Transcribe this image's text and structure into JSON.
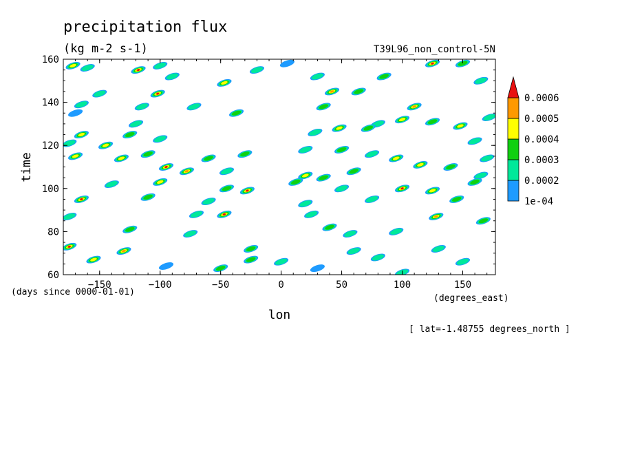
{
  "chart_data": {
    "type": "heatmap",
    "title": "precipitation flux",
    "subtitle": "(kg m-2 s-1)",
    "experiment": "T39L96_non_control-5N",
    "xlabel": "lon",
    "xunits": "(degrees_east)",
    "ylabel": "time",
    "yunits": "(days since 0000-01-01)",
    "slice_note": "[ lat=-1.48755 degrees_north ]",
    "xlim": [
      -180,
      177
    ],
    "ylim": [
      60,
      160
    ],
    "xticks": [
      -150,
      -100,
      -50,
      0,
      50,
      100,
      150
    ],
    "yticks": [
      60,
      80,
      100,
      120,
      140,
      160
    ],
    "legend": {
      "placement": "right",
      "levels": [
        0.0001,
        0.0002,
        0.0003,
        0.0004,
        0.0005,
        0.0006
      ],
      "level_labels": [
        "1e-04",
        "0.0002",
        "0.0003",
        "0.0004",
        "0.0005",
        "0.0006"
      ],
      "colors": [
        "#1e9bff",
        "#00e89a",
        "#10d010",
        "#ffff00",
        "#ff9900",
        "#e81010"
      ],
      "extend": "max"
    },
    "blobs": [
      {
        "lon": -172,
        "time": 157,
        "v": 0.00045
      },
      {
        "lon": -160,
        "time": 156,
        "v": 0.00025
      },
      {
        "lon": -118,
        "time": 155,
        "v": 0.00062
      },
      {
        "lon": -100,
        "time": 157,
        "v": 0.00025
      },
      {
        "lon": -90,
        "time": 152,
        "v": 0.00022
      },
      {
        "lon": -47,
        "time": 149,
        "v": 0.00045
      },
      {
        "lon": -20,
        "time": 155,
        "v": 0.00022
      },
      {
        "lon": 5,
        "time": 158,
        "v": 0.00018
      },
      {
        "lon": 30,
        "time": 152,
        "v": 0.00028
      },
      {
        "lon": 42,
        "time": 145,
        "v": 0.00055
      },
      {
        "lon": 64,
        "time": 145,
        "v": 0.00032
      },
      {
        "lon": 85,
        "time": 152,
        "v": 0.0003
      },
      {
        "lon": 125,
        "time": 158,
        "v": 0.00065
      },
      {
        "lon": 150,
        "time": 158,
        "v": 0.0003
      },
      {
        "lon": 165,
        "time": 150,
        "v": 0.00025
      },
      {
        "lon": -102,
        "time": 144,
        "v": 0.00065
      },
      {
        "lon": -150,
        "time": 144,
        "v": 0.00022
      },
      {
        "lon": -165,
        "time": 139,
        "v": 0.00025
      },
      {
        "lon": -115,
        "time": 138,
        "v": 0.00028
      },
      {
        "lon": -72,
        "time": 138,
        "v": 0.0002
      },
      {
        "lon": -37,
        "time": 135,
        "v": 0.0003
      },
      {
        "lon": 35,
        "time": 138,
        "v": 0.00035
      },
      {
        "lon": 110,
        "time": 138,
        "v": 0.00055
      },
      {
        "lon": 100,
        "time": 132,
        "v": 0.00045
      },
      {
        "lon": 80,
        "time": 130,
        "v": 0.00028
      },
      {
        "lon": 125,
        "time": 131,
        "v": 0.00035
      },
      {
        "lon": 172,
        "time": 133,
        "v": 0.00022
      },
      {
        "lon": 148,
        "time": 129,
        "v": 0.00042
      },
      {
        "lon": -170,
        "time": 135,
        "v": 0.00018
      },
      {
        "lon": -120,
        "time": 130,
        "v": 0.00022
      },
      {
        "lon": -165,
        "time": 125,
        "v": 0.00045
      },
      {
        "lon": -125,
        "time": 125,
        "v": 0.00038
      },
      {
        "lon": -145,
        "time": 120,
        "v": 0.00042
      },
      {
        "lon": -175,
        "time": 121,
        "v": 0.0002
      },
      {
        "lon": -100,
        "time": 123,
        "v": 0.00022
      },
      {
        "lon": 28,
        "time": 126,
        "v": 0.00025
      },
      {
        "lon": 48,
        "time": 128,
        "v": 0.00045
      },
      {
        "lon": 72,
        "time": 128,
        "v": 0.0003
      },
      {
        "lon": 160,
        "time": 122,
        "v": 0.0002
      },
      {
        "lon": -170,
        "time": 115,
        "v": 0.00045
      },
      {
        "lon": -132,
        "time": 114,
        "v": 0.00045
      },
      {
        "lon": -110,
        "time": 116,
        "v": 0.00035
      },
      {
        "lon": -95,
        "time": 110,
        "v": 0.00062
      },
      {
        "lon": -60,
        "time": 114,
        "v": 0.0003
      },
      {
        "lon": -30,
        "time": 116,
        "v": 0.0003
      },
      {
        "lon": 20,
        "time": 118,
        "v": 0.00022
      },
      {
        "lon": 50,
        "time": 118,
        "v": 0.0003
      },
      {
        "lon": 75,
        "time": 116,
        "v": 0.00025
      },
      {
        "lon": 95,
        "time": 114,
        "v": 0.00045
      },
      {
        "lon": 115,
        "time": 111,
        "v": 0.00045
      },
      {
        "lon": 140,
        "time": 110,
        "v": 0.00038
      },
      {
        "lon": 170,
        "time": 114,
        "v": 0.00025
      },
      {
        "lon": -78,
        "time": 108,
        "v": 0.00055
      },
      {
        "lon": -45,
        "time": 108,
        "v": 0.00028
      },
      {
        "lon": 20,
        "time": 106,
        "v": 0.00045
      },
      {
        "lon": 35,
        "time": 105,
        "v": 0.00035
      },
      {
        "lon": 60,
        "time": 108,
        "v": 0.0003
      },
      {
        "lon": 165,
        "time": 106,
        "v": 0.00022
      },
      {
        "lon": -100,
        "time": 103,
        "v": 0.00045
      },
      {
        "lon": -140,
        "time": 102,
        "v": 0.00025
      },
      {
        "lon": -28,
        "time": 99,
        "v": 0.00062
      },
      {
        "lon": -45,
        "time": 100,
        "v": 0.00035
      },
      {
        "lon": 12,
        "time": 103,
        "v": 0.00035
      },
      {
        "lon": 50,
        "time": 100,
        "v": 0.00025
      },
      {
        "lon": 100,
        "time": 100,
        "v": 0.00062
      },
      {
        "lon": 125,
        "time": 99,
        "v": 0.00045
      },
      {
        "lon": 160,
        "time": 103,
        "v": 0.00035
      },
      {
        "lon": -165,
        "time": 95,
        "v": 0.00062
      },
      {
        "lon": -110,
        "time": 96,
        "v": 0.00035
      },
      {
        "lon": -60,
        "time": 94,
        "v": 0.0002
      },
      {
        "lon": 20,
        "time": 93,
        "v": 0.0002
      },
      {
        "lon": 75,
        "time": 95,
        "v": 0.00022
      },
      {
        "lon": 145,
        "time": 95,
        "v": 0.0003
      },
      {
        "lon": -47,
        "time": 88,
        "v": 0.00062
      },
      {
        "lon": -70,
        "time": 88,
        "v": 0.00028
      },
      {
        "lon": 25,
        "time": 88,
        "v": 0.00028
      },
      {
        "lon": 128,
        "time": 87,
        "v": 0.00055
      },
      {
        "lon": 167,
        "time": 85,
        "v": 0.00038
      },
      {
        "lon": -175,
        "time": 87,
        "v": 0.0002
      },
      {
        "lon": -125,
        "time": 81,
        "v": 0.0003
      },
      {
        "lon": -75,
        "time": 79,
        "v": 0.00022
      },
      {
        "lon": 40,
        "time": 82,
        "v": 0.0003
      },
      {
        "lon": 57,
        "time": 79,
        "v": 0.00025
      },
      {
        "lon": 95,
        "time": 80,
        "v": 0.00022
      },
      {
        "lon": -175,
        "time": 73,
        "v": 0.00062
      },
      {
        "lon": -130,
        "time": 71,
        "v": 0.00055
      },
      {
        "lon": -25,
        "time": 72,
        "v": 0.0003
      },
      {
        "lon": 60,
        "time": 71,
        "v": 0.00025
      },
      {
        "lon": 130,
        "time": 72,
        "v": 0.00025
      },
      {
        "lon": -155,
        "time": 67,
        "v": 0.00045
      },
      {
        "lon": -25,
        "time": 67,
        "v": 0.0003
      },
      {
        "lon": 0,
        "time": 66,
        "v": 0.0002
      },
      {
        "lon": 80,
        "time": 68,
        "v": 0.00022
      },
      {
        "lon": 150,
        "time": 66,
        "v": 0.0002
      },
      {
        "lon": -50,
        "time": 63,
        "v": 0.00032
      },
      {
        "lon": -95,
        "time": 64,
        "v": 0.00018
      },
      {
        "lon": 100,
        "time": 61,
        "v": 0.00022
      },
      {
        "lon": 30,
        "time": 63,
        "v": 0.00018
      }
    ]
  }
}
